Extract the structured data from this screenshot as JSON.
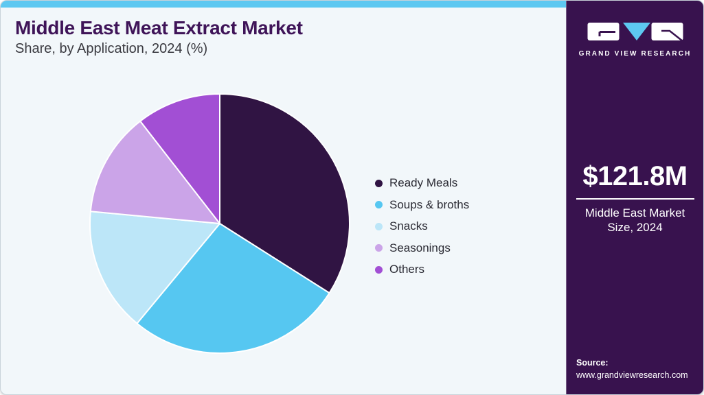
{
  "header": {
    "title": "Middle East Meat Extract Market",
    "subtitle": "Share, by Application, 2024 (%)"
  },
  "chart_data": {
    "type": "pie",
    "title": "Middle East Meat Extract Market Share, by Application, 2024 (%)",
    "labels": [
      "Ready Meals",
      "Soups & broths",
      "Snacks",
      "Seasonings",
      "Others"
    ],
    "values": [
      34,
      27,
      15.5,
      13,
      10.5
    ],
    "unit": "%",
    "colors": [
      "#301443",
      "#56c7f1",
      "#bce6f8",
      "#cba4e8",
      "#a24fd4"
    ],
    "start_angle": "top",
    "direction": "clockwise",
    "legend_position": "right",
    "data_labels_shown": false
  },
  "side_panel": {
    "brand": "GRAND VIEW RESEARCH",
    "market_size_value": "$121.8M",
    "market_size_label": "Middle East Market Size, 2024",
    "source_label": "Source:",
    "source_url": "www.grandviewresearch.com"
  },
  "theme": {
    "accent_cyan": "#5dc8f1",
    "panel_bg": "#38124e",
    "card_bg": "#f2f7fa",
    "title_color": "#3f1458",
    "legend_text_color": "#2a2a33"
  }
}
